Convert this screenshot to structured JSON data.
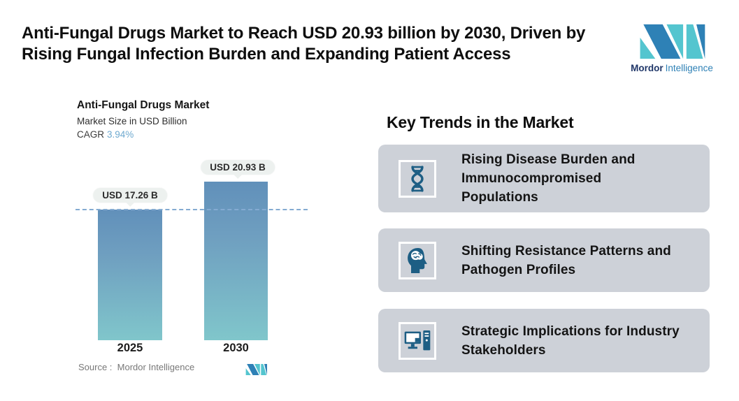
{
  "header": {
    "title_lines": [
      "Anti-Fungal Drugs Market to Reach USD 20.93 billion by 2030, Driven by",
      "Rising Fungal Infection Burden and Expanding Patient Access"
    ],
    "brand": {
      "name_bold": "Mordor",
      "name_light": "Intelligence"
    }
  },
  "chart_data": {
    "type": "bar",
    "title": "Anti-Fungal Drugs Market",
    "subtitle": "Market Size in USD Billion",
    "cagr_label": "CAGR",
    "cagr_value": "3.94%",
    "categories": [
      "2025",
      "2030"
    ],
    "values": [
      17.26,
      20.93
    ],
    "value_labels": [
      "USD 17.26 B",
      "USD 20.93 B"
    ],
    "unit": "USD Billion",
    "ylim": [
      0,
      20.93
    ],
    "reference_line_value": 17.26,
    "grid": false,
    "legend": false,
    "source": "Source :  Mordor Intelligence"
  },
  "trends": {
    "heading": "Key Trends in the Market",
    "cards": [
      {
        "icon": "dna-icon",
        "text": "Rising Disease Burden and Immunocompromised Populations"
      },
      {
        "icon": "head-brain-icon",
        "text": "Shifting Resistance Patterns and Pathogen Profiles"
      },
      {
        "icon": "desktop-computer-icon",
        "text": "Strategic Implications for Industry Stakeholders"
      }
    ]
  },
  "colors": {
    "accent_teal": "#54c5cf",
    "accent_blue": "#2e81b6",
    "icon_teal_dark": "#1d5e84",
    "card_background": "#cdd1d8",
    "bar_gradient_top": "#6190ba",
    "bar_gradient_bottom": "#80c6cb",
    "reference_line": "#84abd2",
    "cagr_value_color": "#6ea9cf",
    "pill_background": "#edf1ef"
  }
}
